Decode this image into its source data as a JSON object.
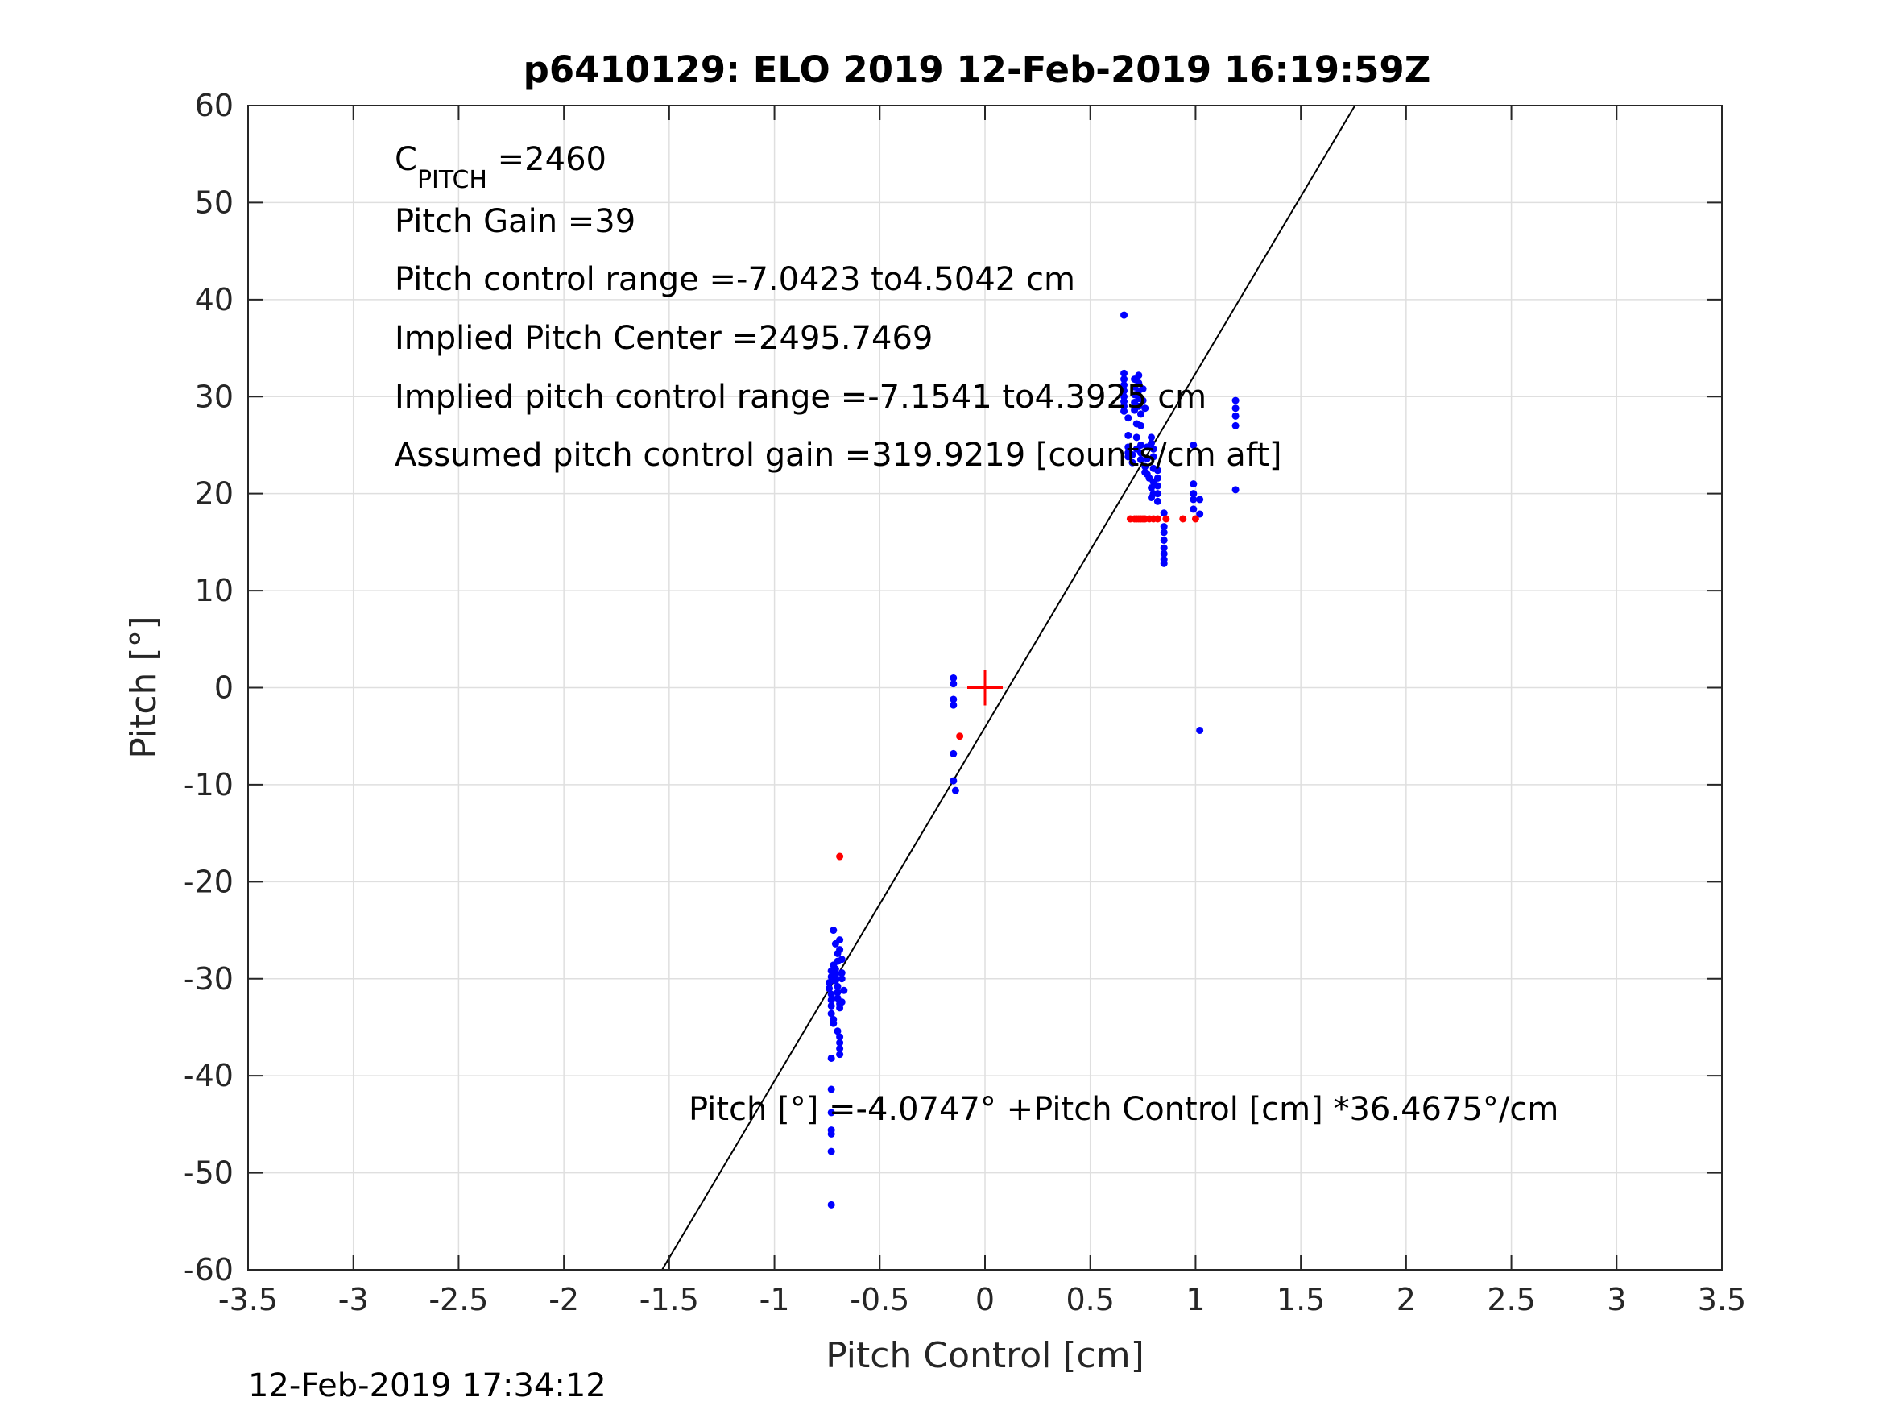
{
  "chart_data": {
    "type": "scatter",
    "title": "p6410129: ELO 2019 12-Feb-2019 16:19:59Z",
    "xlabel": "Pitch Control [cm]",
    "ylabel": "Pitch [°]",
    "xlim": [
      -3.5,
      3.5
    ],
    "ylim": [
      -60,
      60
    ],
    "xticks": [
      -3.5,
      -3,
      -2.5,
      -2,
      -1.5,
      -1,
      -0.5,
      0,
      0.5,
      1,
      1.5,
      2,
      2.5,
      3,
      3.5
    ],
    "yticks": [
      -60,
      -50,
      -40,
      -30,
      -20,
      -10,
      0,
      10,
      20,
      30,
      40,
      50,
      60
    ],
    "grid": true,
    "annotations": {
      "c_pitch_main": "C",
      "c_pitch_sub": "PITCH",
      "c_pitch_value": " =2460",
      "pitch_gain": "Pitch Gain =39",
      "pitch_control_range": "Pitch control range =-7.0423 to4.5042 cm",
      "implied_pitch_center": "Implied Pitch Center =2495.7469",
      "implied_pitch_control_range": "Implied pitch control range =-7.1541 to4.3925 cm",
      "assumed_gain": "Assumed pitch control gain =319.9219 [counts/cm aft]",
      "fit_equation": "Pitch [°] =-4.0747° +Pitch Control [cm] *36.4675°/cm"
    },
    "fit_line": {
      "intercept": -4.0747,
      "slope": 36.4675,
      "color": "#000000"
    },
    "center_marker": {
      "x": 0,
      "y": 0,
      "color": "#ff0000"
    },
    "series": [
      {
        "color": "#0000ff",
        "points": [
          [
            0.66,
            38.4
          ],
          [
            0.66,
            32.4
          ],
          [
            0.66,
            31.8
          ],
          [
            0.66,
            31.2
          ],
          [
            0.66,
            30.6
          ],
          [
            0.66,
            30.0
          ],
          [
            0.66,
            29.5
          ],
          [
            0.66,
            29.0
          ],
          [
            0.66,
            28.5
          ],
          [
            0.68,
            27.8
          ],
          [
            0.68,
            26.0
          ],
          [
            0.68,
            24.8
          ],
          [
            0.68,
            24.2
          ],
          [
            0.68,
            23.8
          ],
          [
            0.7,
            23.2
          ],
          [
            0.7,
            24.0
          ],
          [
            0.71,
            31.8
          ],
          [
            0.71,
            31.0
          ],
          [
            0.71,
            30.2
          ],
          [
            0.71,
            29.4
          ],
          [
            0.71,
            28.6
          ],
          [
            0.72,
            27.2
          ],
          [
            0.72,
            25.8
          ],
          [
            0.72,
            24.6
          ],
          [
            0.73,
            32.2
          ],
          [
            0.73,
            31.4
          ],
          [
            0.73,
            30.6
          ],
          [
            0.73,
            29.8
          ],
          [
            0.73,
            29.0
          ],
          [
            0.74,
            28.2
          ],
          [
            0.74,
            27.0
          ],
          [
            0.74,
            25.0
          ],
          [
            0.74,
            24.2
          ],
          [
            0.74,
            23.5
          ],
          [
            0.75,
            30.8
          ],
          [
            0.75,
            29.6
          ],
          [
            0.76,
            28.8
          ],
          [
            0.76,
            22.8
          ],
          [
            0.76,
            22.2
          ],
          [
            0.77,
            24.8
          ],
          [
            0.77,
            23.6
          ],
          [
            0.77,
            22.0
          ],
          [
            0.78,
            21.6
          ],
          [
            0.79,
            25.8
          ],
          [
            0.79,
            25.2
          ],
          [
            0.79,
            20.6
          ],
          [
            0.79,
            19.6
          ],
          [
            0.8,
            24.6
          ],
          [
            0.8,
            23.8
          ],
          [
            0.8,
            22.6
          ],
          [
            0.8,
            21.2
          ],
          [
            0.8,
            20.0
          ],
          [
            0.82,
            22.4
          ],
          [
            0.82,
            21.6
          ],
          [
            0.82,
            20.8
          ],
          [
            0.82,
            20.0
          ],
          [
            0.82,
            19.2
          ],
          [
            0.85,
            18.0
          ],
          [
            0.85,
            16.6
          ],
          [
            0.85,
            16.0
          ],
          [
            0.85,
            15.2
          ],
          [
            0.85,
            14.4
          ],
          [
            0.85,
            13.8
          ],
          [
            0.85,
            13.2
          ],
          [
            0.85,
            12.8
          ],
          [
            0.99,
            25.0
          ],
          [
            0.99,
            21.0
          ],
          [
            0.99,
            20.0
          ],
          [
            0.99,
            19.4
          ],
          [
            0.99,
            18.4
          ],
          [
            1.02,
            19.4
          ],
          [
            1.02,
            17.9
          ],
          [
            1.02,
            -4.4
          ],
          [
            1.19,
            29.6
          ],
          [
            1.19,
            28.8
          ],
          [
            1.19,
            28.0
          ],
          [
            1.19,
            27.0
          ],
          [
            1.19,
            20.4
          ],
          [
            -0.15,
            1.0
          ],
          [
            -0.15,
            0.4
          ],
          [
            -0.15,
            -1.2
          ],
          [
            -0.15,
            -1.8
          ],
          [
            -0.15,
            -6.8
          ],
          [
            -0.15,
            -9.6
          ],
          [
            -0.14,
            -10.6
          ],
          [
            -0.72,
            -25.0
          ],
          [
            -0.71,
            -26.4
          ],
          [
            -0.7,
            -27.4
          ],
          [
            -0.69,
            -26.0
          ],
          [
            -0.69,
            -27.0
          ],
          [
            -0.68,
            -28.0
          ],
          [
            -0.7,
            -28.2
          ],
          [
            -0.72,
            -28.6
          ],
          [
            -0.73,
            -29.2
          ],
          [
            -0.73,
            -29.8
          ],
          [
            -0.74,
            -30.4
          ],
          [
            -0.74,
            -31.0
          ],
          [
            -0.73,
            -31.6
          ],
          [
            -0.73,
            -32.2
          ],
          [
            -0.73,
            -32.8
          ],
          [
            -0.71,
            -29.0
          ],
          [
            -0.71,
            -29.6
          ],
          [
            -0.71,
            -30.2
          ],
          [
            -0.7,
            -30.8
          ],
          [
            -0.7,
            -31.4
          ],
          [
            -0.7,
            -32.0
          ],
          [
            -0.69,
            -32.6
          ],
          [
            -0.69,
            -33.0
          ],
          [
            -0.68,
            -29.4
          ],
          [
            -0.68,
            -30.0
          ],
          [
            -0.67,
            -31.2
          ],
          [
            -0.68,
            -32.4
          ],
          [
            -0.73,
            -33.6
          ],
          [
            -0.72,
            -34.2
          ],
          [
            -0.72,
            -34.6
          ],
          [
            -0.7,
            -35.4
          ],
          [
            -0.69,
            -36.0
          ],
          [
            -0.69,
            -36.6
          ],
          [
            -0.69,
            -37.2
          ],
          [
            -0.69,
            -37.8
          ],
          [
            -0.73,
            -38.2
          ],
          [
            -0.73,
            -41.4
          ],
          [
            -0.73,
            -43.8
          ],
          [
            -0.73,
            -45.6
          ],
          [
            -0.73,
            -46.0
          ],
          [
            -0.73,
            -47.8
          ],
          [
            -0.73,
            -53.3
          ]
        ]
      },
      {
        "color": "#ff0000",
        "points": [
          [
            0.69,
            17.4
          ],
          [
            0.71,
            17.4
          ],
          [
            0.72,
            17.4
          ],
          [
            0.73,
            17.4
          ],
          [
            0.74,
            17.4
          ],
          [
            0.75,
            17.4
          ],
          [
            0.76,
            17.4
          ],
          [
            0.78,
            17.4
          ],
          [
            0.8,
            17.4
          ],
          [
            0.82,
            17.4
          ],
          [
            0.86,
            17.4
          ],
          [
            0.94,
            17.4
          ],
          [
            1.0,
            17.4
          ],
          [
            -0.12,
            -5.0
          ],
          [
            -0.69,
            -17.4
          ]
        ]
      }
    ]
  },
  "timestamp": "12-Feb-2019 17:34:12"
}
